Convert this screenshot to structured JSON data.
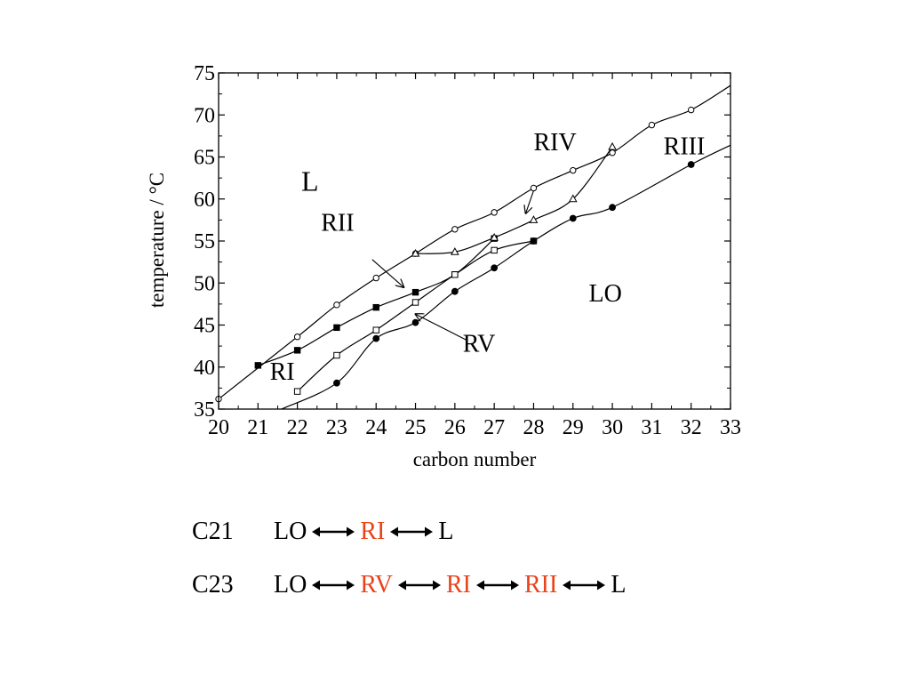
{
  "chart_data": {
    "type": "line",
    "xlabel": "carbon number",
    "ylabel": "temperature / °C",
    "xlim": [
      20,
      33
    ],
    "ylim": [
      35,
      75
    ],
    "x_ticks": [
      20,
      21,
      22,
      23,
      24,
      25,
      26,
      27,
      28,
      29,
      30,
      31,
      32,
      33
    ],
    "y_ticks": [
      35,
      40,
      45,
      50,
      55,
      60,
      65,
      70,
      75
    ],
    "grid": false,
    "series": [
      {
        "marker": "open-circle",
        "boundary": "L",
        "points": [
          [
            20,
            36.2
          ],
          [
            22,
            43.6
          ],
          [
            23,
            47.4
          ],
          [
            24,
            50.6
          ],
          [
            25,
            53.5
          ],
          [
            26,
            56.4
          ],
          [
            27,
            58.4
          ],
          [
            28,
            61.3
          ],
          [
            29,
            63.4
          ],
          [
            30,
            65.5
          ],
          [
            31,
            68.8
          ],
          [
            32,
            70.6
          ],
          [
            33,
            73.5
          ]
        ]
      },
      {
        "marker": "filled-square",
        "boundary": "RI-RII",
        "points": [
          [
            21,
            40.2
          ],
          [
            22,
            42.0
          ],
          [
            23,
            44.7
          ],
          [
            24,
            47.1
          ],
          [
            25,
            48.9
          ],
          [
            26,
            51.0
          ],
          [
            27,
            55.3
          ]
        ]
      },
      {
        "marker": "open-triangle",
        "boundary": "RIV",
        "points": [
          [
            25,
            53.5
          ],
          [
            26,
            53.7
          ],
          [
            27,
            55.4
          ],
          [
            28,
            57.5
          ],
          [
            29,
            60.0
          ],
          [
            30,
            66.2
          ]
        ]
      },
      {
        "marker": "open-square",
        "boundary": "RV",
        "points": [
          [
            22,
            37.1
          ],
          [
            23,
            41.4
          ],
          [
            24,
            44.4
          ],
          [
            25,
            47.7
          ],
          [
            26,
            51.0
          ],
          [
            27,
            53.9
          ],
          [
            28,
            55.0
          ]
        ]
      },
      {
        "marker": "filled-circle",
        "boundary": "LO",
        "points": [
          [
            21.6,
            35.0
          ],
          [
            23,
            38.1
          ],
          [
            24,
            43.4
          ],
          [
            25,
            45.3
          ],
          [
            26,
            49.0
          ],
          [
            27,
            51.8
          ],
          [
            28,
            55.0
          ],
          [
            29,
            57.7
          ],
          [
            30,
            59.0
          ],
          [
            32,
            64.1
          ],
          [
            33,
            66.4
          ]
        ]
      }
    ],
    "region_labels": [
      {
        "text": "L",
        "x": 22.1,
        "y": 61.0
      },
      {
        "text": "LO",
        "x": 29.4,
        "y": 47.8
      },
      {
        "text": "RI",
        "x": 21.3,
        "y": 38.5
      },
      {
        "text": "RII",
        "x": 22.6,
        "y": 56.2
      },
      {
        "text": "RIII",
        "x": 31.3,
        "y": 65.3
      },
      {
        "text": "RIV",
        "x": 28.0,
        "y": 65.8
      },
      {
        "text": "RV",
        "x": 26.2,
        "y": 41.8
      }
    ],
    "annotations": [
      {
        "text": "RII",
        "from": [
          23.9,
          52.8
        ],
        "to": [
          24.7,
          49.5
        ]
      },
      {
        "text": "RIV",
        "from": [
          28.0,
          61.0
        ],
        "to": [
          27.8,
          58.3
        ]
      },
      {
        "text": "RV",
        "from": [
          26.3,
          43.2
        ],
        "to": [
          25.0,
          46.3
        ]
      }
    ]
  },
  "sequences": [
    {
      "label": "C21",
      "steps": [
        {
          "text": "LO",
          "highlight": false
        },
        {
          "text": "RI",
          "highlight": true
        },
        {
          "text": "L",
          "highlight": false
        }
      ]
    },
    {
      "label": "C23",
      "steps": [
        {
          "text": "LO",
          "highlight": false
        },
        {
          "text": "RV",
          "highlight": true
        },
        {
          "text": "RI",
          "highlight": true
        },
        {
          "text": "RII",
          "highlight": true
        },
        {
          "text": "L",
          "highlight": false
        }
      ]
    }
  ],
  "colors": {
    "highlight": "#e8431a",
    "ink": "#000000"
  }
}
